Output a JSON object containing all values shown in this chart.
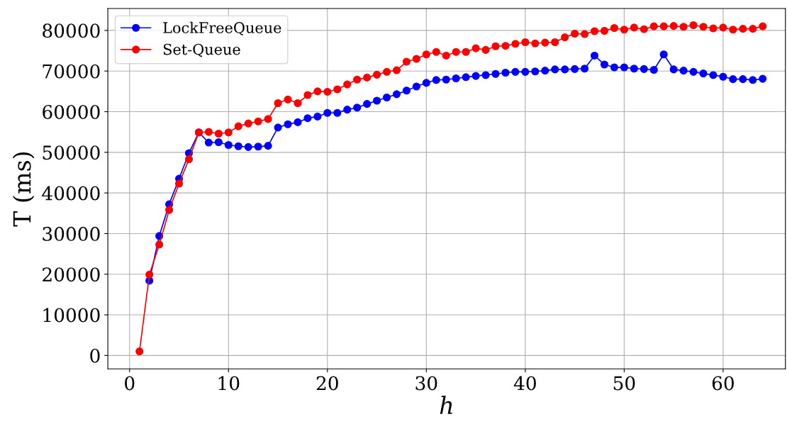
{
  "chart_data": {
    "type": "line",
    "xlabel": "h",
    "ylabel": "T (ms)",
    "x": [
      1,
      2,
      3,
      4,
      5,
      6,
      7,
      8,
      9,
      10,
      11,
      12,
      13,
      14,
      15,
      16,
      17,
      18,
      19,
      20,
      21,
      22,
      23,
      24,
      25,
      26,
      27,
      28,
      29,
      30,
      31,
      32,
      33,
      34,
      35,
      36,
      37,
      38,
      39,
      40,
      41,
      42,
      43,
      44,
      45,
      46,
      47,
      48,
      49,
      50,
      51,
      52,
      53,
      54,
      55,
      56,
      57,
      58,
      59,
      60,
      61,
      62,
      63,
      64
    ],
    "series": [
      {
        "name": "LockFreeQueue",
        "color": "#0000ff",
        "values": [
          null,
          18400,
          29400,
          37200,
          43500,
          49800,
          54900,
          52400,
          52500,
          51800,
          51500,
          51300,
          51400,
          51600,
          56100,
          56900,
          57400,
          58400,
          58800,
          59700,
          59700,
          60500,
          61000,
          61900,
          62700,
          63500,
          64300,
          65200,
          66200,
          67100,
          67800,
          67900,
          68200,
          68500,
          68800,
          69000,
          69300,
          69600,
          69800,
          69800,
          69900,
          70100,
          70400,
          70400,
          70500,
          70600,
          73800,
          71600,
          70900,
          70900,
          70600,
          70500,
          70300,
          74100,
          70400,
          70100,
          69800,
          69400,
          69000,
          68600,
          68000,
          68000,
          67800,
          68100
        ]
      },
      {
        "name": "Set-Queue",
        "color": "#ff0000",
        "values": [
          1000,
          19900,
          27300,
          35800,
          42300,
          48300,
          54900,
          55000,
          54600,
          54900,
          56400,
          57100,
          57600,
          58200,
          62100,
          63000,
          62100,
          64100,
          65000,
          64900,
          65500,
          66700,
          67900,
          68400,
          69100,
          69800,
          70200,
          72300,
          73000,
          74100,
          74700,
          73800,
          74700,
          74700,
          75600,
          75200,
          76100,
          76200,
          76700,
          77100,
          76800,
          77000,
          77100,
          78300,
          79200,
          79100,
          79800,
          79900,
          80600,
          80200,
          80700,
          80300,
          81000,
          81000,
          81100,
          80900,
          81300,
          80900,
          80500,
          80700,
          80200,
          80400,
          80400,
          81000
        ]
      }
    ],
    "xlim": [
      -2.2,
      66.3
    ],
    "ylim": [
      -3300,
      85400
    ],
    "xticks": [
      0,
      10,
      20,
      30,
      40,
      50,
      60
    ],
    "yticks": [
      0,
      10000,
      20000,
      30000,
      40000,
      50000,
      60000,
      70000,
      80000
    ],
    "grid": true,
    "legend": "top left",
    "marker": "circle",
    "line_style": "solid"
  }
}
